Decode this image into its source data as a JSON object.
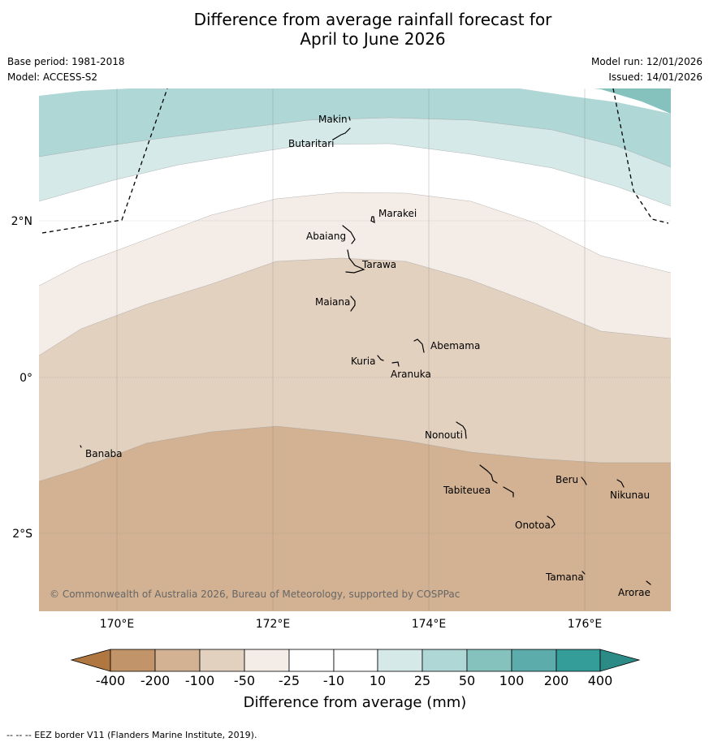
{
  "title": {
    "line1": "Difference from average rainfall forecast for",
    "line2": "April to June 2026"
  },
  "meta": {
    "base_period": "Base period: 1981-2018",
    "model": "Model: ACCESS-S2",
    "model_run": "Model run: 12/01/2026",
    "issued": "Issued: 14/01/2026"
  },
  "axes": {
    "lat_labels": [
      "2°N",
      "0°",
      "2°S"
    ],
    "lon_labels": [
      "170°E",
      "172°E",
      "174°E",
      "176°E"
    ]
  },
  "places": [
    {
      "name": "Makin",
      "lon": 172.97,
      "lat": 3.38
    },
    {
      "name": "Butaritari",
      "lon": 172.8,
      "lat": 3.07
    },
    {
      "name": "Marakei",
      "lon": 173.27,
      "lat": 2.0
    },
    {
      "name": "Abaiang",
      "lon": 172.95,
      "lat": 1.85
    },
    {
      "name": "Tarawa",
      "lon": 173.0,
      "lat": 1.42
    },
    {
      "name": "Maiana",
      "lon": 173.0,
      "lat": 0.93
    },
    {
      "name": "Abemama",
      "lon": 173.85,
      "lat": 0.4
    },
    {
      "name": "Kuria",
      "lon": 173.4,
      "lat": 0.23
    },
    {
      "name": "Aranuka",
      "lon": 173.6,
      "lat": 0.16
    },
    {
      "name": "Nonouti",
      "lon": 174.4,
      "lat": -0.65
    },
    {
      "name": "Banaba",
      "lon": 169.55,
      "lat": -0.86
    },
    {
      "name": "Tabiteuea",
      "lon": 174.8,
      "lat": -1.3
    },
    {
      "name": "Beru",
      "lon": 176.0,
      "lat": -1.33
    },
    {
      "name": "Nikunau",
      "lon": 176.45,
      "lat": -1.37
    },
    {
      "name": "Onotoa",
      "lon": 175.55,
      "lat": -1.8
    },
    {
      "name": "Tamana",
      "lon": 175.98,
      "lat": -2.5
    },
    {
      "name": "Arorae",
      "lon": 176.82,
      "lat": -2.65
    }
  ],
  "copyright": "© Commonwealth of Australia 2026, Bureau of Meteorology, supported by COSPPac",
  "legend": {
    "title": "Difference from average (mm)",
    "bins": [
      {
        "label": "-400",
        "color": "#b07840"
      },
      {
        "label": "-200",
        "color": "#c29469"
      },
      {
        "label": "-100",
        "color": "#d2b292"
      },
      {
        "label": "-50",
        "color": "#e3d1c0"
      },
      {
        "label": "-25",
        "color": "#f4ece6"
      },
      {
        "label": "-10",
        "color": "#ffffff"
      },
      {
        "label": "10",
        "color": "#d5e9e8"
      },
      {
        "label": "25",
        "color": "#aed7d5"
      },
      {
        "label": "50",
        "color": "#85c2be"
      },
      {
        "label": "100",
        "color": "#5bacaa"
      },
      {
        "label": "200",
        "color": "#349d99"
      },
      {
        "label": "400",
        "color": "#2d8b87"
      }
    ]
  },
  "footnote": "--  --  -- EEZ border V11 (Flanders Marine Institute, 2019)."
}
